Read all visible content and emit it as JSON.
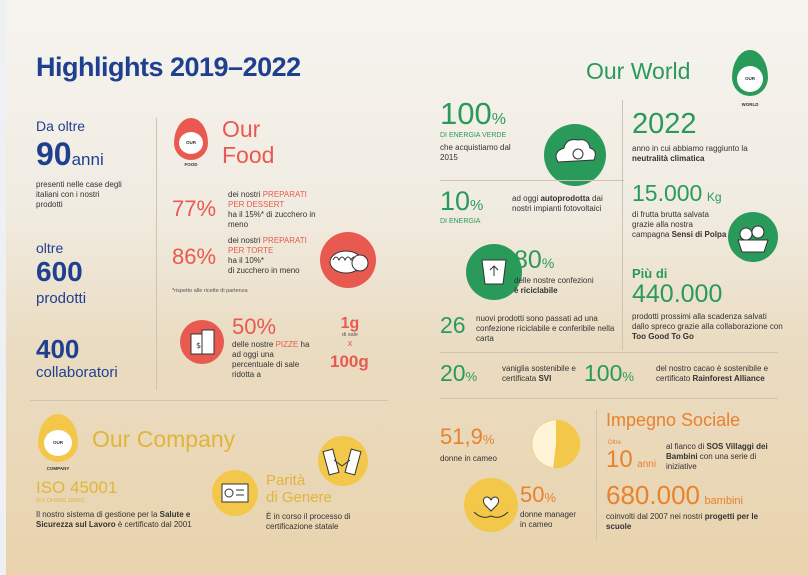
{
  "title": "Highlights 2019–2022",
  "colors": {
    "navy": "#1f3f8f",
    "red": "#e85a4f",
    "green": "#2a9a5a",
    "orange": "#e8822e",
    "gold": "#f3c84a"
  },
  "left": {
    "years_prefix": "Da oltre",
    "years_number": "90",
    "years_unit": "anni",
    "years_desc": "presenti nelle case degli italiani con i nostri prodotti",
    "products_prefix": "oltre",
    "products_number": "600",
    "products_label": "prodotti",
    "staff_number": "400",
    "staff_label": "collaboratori"
  },
  "our_food": {
    "badge": "OUR FOOD",
    "title_1": "Our",
    "title_2": "Food",
    "stat1_value": "77%",
    "stat1_text_a": "dei nostri",
    "stat1_text_b": "PREPARATI",
    "stat1_text_c": "PER DESSERT",
    "stat1_text_d": "ha il 15%* di zucchero in meno",
    "stat2_value": "86%",
    "stat2_text_a": "dei nostri",
    "stat2_text_b": "PREPARATI",
    "stat2_text_c": "PER TORTE",
    "stat2_text_d": "ha il 10%*",
    "stat2_text_e": "di zucchero in meno",
    "footnote": "*rispetto alle ricette di partenza",
    "stat3_value": "50%",
    "stat3_text_a": "delle nostre",
    "stat3_text_b": "PIZZE",
    "stat3_text_c": "ha ad oggi una percentuale di sale ridotta a",
    "salt_top": "1g",
    "salt_mid": "di sale",
    "salt_x": "x",
    "salt_bottom": "100g"
  },
  "our_company": {
    "badge": "OUR COMPANY",
    "title": "Our Company",
    "iso": "ISO 45001",
    "iso_sub": "(EX OHSAS 18001)",
    "iso_text_a": "Il nostro sistema di gestione per la",
    "iso_text_b": "Salute e Sicurezza sul Lavoro",
    "iso_text_c": "è certificato dal 2001",
    "parita_1": "Parità",
    "parita_2": "di Genere",
    "parita_text": "È in corso il processo di certificazione statale"
  },
  "our_world": {
    "badge": "OUR WORLD",
    "title": "Our World",
    "energy_value": "100",
    "energy_unit": "%",
    "energy_label": "DI ENERGIA VERDE",
    "energy_text": "che acquistiamo dal 2015",
    "year_value": "2022",
    "year_text_a": "anno in cui abbiamo raggiunto la",
    "year_text_b": "neutralità climatica",
    "self_value": "10",
    "self_unit": "%",
    "self_label": "DI ENERGIA",
    "self_text_a": "ad oggi",
    "self_text_b": "autoprodotta",
    "self_text_c": "dai nostri impianti fotovoltaici",
    "fruit_value": "15.000",
    "fruit_unit": "Kg",
    "fruit_text_a": "di frutta brutta salvata grazie alla nostra campagna",
    "fruit_text_b": "Sensi di Polpa",
    "pack_value": "80",
    "pack_unit": "%",
    "pack_text_a": "delle nostre confezioni",
    "pack_text_b": "è riciclabile",
    "new_value": "26",
    "new_text": "nuovi prodotti sono passati ad una confezione riciclabile e conferibile nella carta",
    "saved_prefix": "Più di",
    "saved_value": "440.000",
    "saved_text_a": "prodotti prossimi alla scadenza salvati dallo spreco grazie alla collaborazione con",
    "saved_text_b": "Too Good To Go",
    "vanilla_value": "20",
    "vanilla_unit": "%",
    "vanilla_text_a": "vaniglia sostenibile e certificata",
    "vanilla_text_b": "SVI",
    "cocoa_value": "100",
    "cocoa_unit": "%",
    "cocoa_text_a": "del nostro cacao è sostenibile e certificato",
    "cocoa_text_b": "Rainforest Alliance"
  },
  "people": {
    "women_value": "51,9",
    "women_unit": "%",
    "women_text": "donne in cameo",
    "women_ratio": 0.519,
    "managers_value": "50",
    "managers_unit": "%",
    "managers_text": "donne manager in cameo"
  },
  "social": {
    "title": "Impegno Sociale",
    "oltre": "Oltre",
    "years_value": "10",
    "years_unit": "anni",
    "years_text_a": "al fianco di",
    "years_text_b": "SOS Villaggi dei Bambini",
    "years_text_c": "con una serie di iniziative",
    "kids_value": "680.000",
    "kids_unit": "bambini",
    "kids_text_a": "coinvolti dal 2007 nei nostri",
    "kids_text_b": "progetti per le scuole"
  }
}
